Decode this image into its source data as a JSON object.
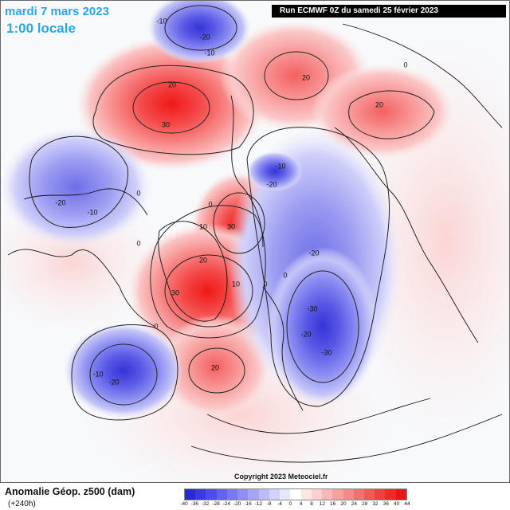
{
  "header": {
    "valid_date": "mardi 7 mars 2023",
    "local_time": "1:00 locale",
    "run_info": "Run ECMWF 0Z du samedi 25 février 2023"
  },
  "watermark": "Copyright 2023 Meteociel.fr",
  "footer": {
    "title": "Anomalie Géop. z500 (dam)",
    "lead_time": "(+240h)"
  },
  "legend": {
    "labels": [
      "-40",
      "-36",
      "-32",
      "-28",
      "-24",
      "-20",
      "-16",
      "-12",
      "-8",
      "-4",
      "0",
      "4",
      "8",
      "12",
      "16",
      "20",
      "24",
      "28",
      "32",
      "36",
      "40",
      "44"
    ],
    "colors": [
      "#2a2ad0",
      "#3a3ae0",
      "#4d4dea",
      "#6262f0",
      "#7878f2",
      "#8e8ef4",
      "#a5a5f6",
      "#bcbcf8",
      "#d2d2fa",
      "#e6e6fc",
      "#ffffff",
      "#fde6e6",
      "#fbd0d0",
      "#f9b8b8",
      "#f7a0a0",
      "#f58888",
      "#f37070",
      "#f15858",
      "#ef4040",
      "#ed2a2a",
      "#e81515"
    ]
  },
  "contour_labels": [
    "-10",
    "-20",
    "-10",
    "20",
    "30",
    "20",
    "0",
    "20",
    "0",
    "-20",
    "-10",
    "0",
    "30",
    "10",
    "-20",
    "-10",
    "0",
    "20",
    "30",
    "0",
    "10",
    "-30",
    "-20",
    "-30",
    "-20",
    "0",
    "-10",
    "-20",
    "0",
    "20"
  ],
  "anomalies": [
    {
      "sign": "negative",
      "peak": "-20",
      "region": "North Pacific (top)"
    },
    {
      "sign": "positive",
      "peak": "30",
      "region": "Alaska / Bering"
    },
    {
      "sign": "positive",
      "peak": "20",
      "region": "East Siberia"
    },
    {
      "sign": "positive",
      "peak": "20",
      "region": "Central Siberia"
    },
    {
      "sign": "negative",
      "peak": "-20",
      "region": "North America"
    },
    {
      "sign": "positive",
      "peak": "30",
      "region": "Greenland / North Atlantic"
    },
    {
      "sign": "negative",
      "peak": "-20",
      "region": "Western Atlantic"
    },
    {
      "sign": "positive",
      "peak": "20",
      "region": "Central Atlantic"
    },
    {
      "sign": "negative",
      "peak": "-30",
      "region": "Scandinavia / Russia"
    }
  ]
}
